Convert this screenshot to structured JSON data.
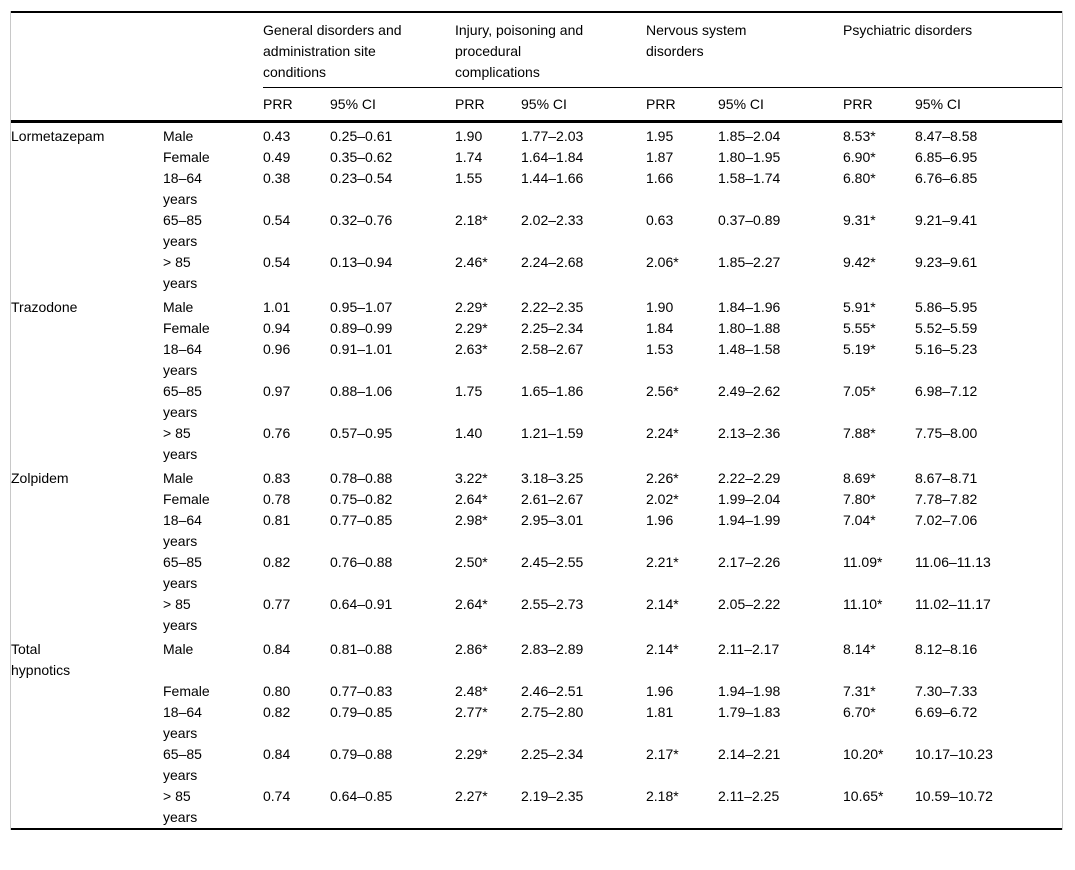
{
  "table": {
    "group_headers": [
      "General disorders and administration site conditions",
      "Injury, poisoning and procedural complications",
      "Nervous system disorders",
      "Psychiatric disorders"
    ],
    "sub_headers": {
      "prr": "PRR",
      "ci": "95% CI"
    },
    "sections": [
      {
        "drug": "Lormetazepam",
        "rows": [
          {
            "label": "Male",
            "v": [
              "0.43",
              "0.25–0.61",
              "1.90",
              "1.77–2.03",
              "1.95",
              "1.85–2.04",
              "8.53*",
              "8.47–8.58"
            ]
          },
          {
            "label": "Female",
            "v": [
              "0.49",
              "0.35–0.62",
              "1.74",
              "1.64–1.84",
              "1.87",
              "1.80–1.95",
              "6.90*",
              "6.85–6.95"
            ]
          },
          {
            "label": "18–64 years",
            "v": [
              "0.38",
              "0.23–0.54",
              "1.55",
              "1.44–1.66",
              "1.66",
              "1.58–1.74",
              "6.80*",
              "6.76–6.85"
            ]
          },
          {
            "label": "65–85 years",
            "v": [
              "0.54",
              "0.32–0.76",
              "2.18*",
              "2.02–2.33",
              "0.63",
              "0.37–0.89",
              "9.31*",
              "9.21–9.41"
            ]
          },
          {
            "label": "> 85 years",
            "v": [
              "0.54",
              "0.13–0.94",
              "2.46*",
              "2.24–2.68",
              "2.06*",
              "1.85–2.27",
              "9.42*",
              "9.23–9.61"
            ]
          }
        ]
      },
      {
        "drug": "Trazodone",
        "rows": [
          {
            "label": "Male",
            "v": [
              "1.01",
              "0.95–1.07",
              "2.29*",
              "2.22–2.35",
              "1.90",
              "1.84–1.96",
              "5.91*",
              "5.86–5.95"
            ]
          },
          {
            "label": "Female",
            "v": [
              "0.94",
              "0.89–0.99",
              "2.29*",
              "2.25–2.34",
              "1.84",
              "1.80–1.88",
              "5.55*",
              "5.52–5.59"
            ]
          },
          {
            "label": "18–64 years",
            "v": [
              "0.96",
              "0.91–1.01",
              "2.63*",
              "2.58–2.67",
              "1.53",
              "1.48–1.58",
              "5.19*",
              "5.16–5.23"
            ]
          },
          {
            "label": "65–85 years",
            "v": [
              "0.97",
              "0.88–1.06",
              "1.75",
              "1.65–1.86",
              "2.56*",
              "2.49–2.62",
              "7.05*",
              "6.98–7.12"
            ]
          },
          {
            "label": "> 85 years",
            "v": [
              "0.76",
              "0.57–0.95",
              "1.40",
              "1.21–1.59",
              "2.24*",
              "2.13–2.36",
              "7.88*",
              "7.75–8.00"
            ]
          }
        ]
      },
      {
        "drug": "Zolpidem",
        "rows": [
          {
            "label": "Male",
            "v": [
              "0.83",
              "0.78–0.88",
              "3.22*",
              "3.18–3.25",
              "2.26*",
              "2.22–2.29",
              "8.69*",
              "8.67–8.71"
            ]
          },
          {
            "label": "Female",
            "v": [
              "0.78",
              "0.75–0.82",
              "2.64*",
              "2.61–2.67",
              "2.02*",
              "1.99–2.04",
              "7.80*",
              "7.78–7.82"
            ]
          },
          {
            "label": "18–64 years",
            "v": [
              "0.81",
              "0.77–0.85",
              "2.98*",
              "2.95–3.01",
              "1.96",
              "1.94–1.99",
              "7.04*",
              "7.02–7.06"
            ]
          },
          {
            "label": "65–85 years",
            "v": [
              "0.82",
              "0.76–0.88",
              "2.50*",
              "2.45–2.55",
              "2.21*",
              "2.17–2.26",
              "11.09*",
              "11.06–11.13"
            ]
          },
          {
            "label": "> 85 years",
            "v": [
              "0.77",
              "0.64–0.91",
              "2.64*",
              "2.55–2.73",
              "2.14*",
              "2.05–2.22",
              "11.10*",
              "11.02–11.17"
            ]
          }
        ]
      },
      {
        "drug": "Total hypnotics",
        "rows": [
          {
            "label": "Male",
            "v": [
              "0.84",
              "0.81–0.88",
              "2.86*",
              "2.83–2.89",
              "2.14*",
              "2.11–2.17",
              "8.14*",
              "8.12–8.16"
            ]
          },
          {
            "label": "Female",
            "v": [
              "0.80",
              "0.77–0.83",
              "2.48*",
              "2.46–2.51",
              "1.96",
              "1.94–1.98",
              "7.31*",
              "7.30–7.33"
            ]
          },
          {
            "label": "18–64 years",
            "v": [
              "0.82",
              "0.79–0.85",
              "2.77*",
              "2.75–2.80",
              "1.81",
              "1.79–1.83",
              "6.70*",
              "6.69–6.72"
            ]
          },
          {
            "label": "65–85 years",
            "v": [
              "0.84",
              "0.79–0.88",
              "2.29*",
              "2.25–2.34",
              "2.17*",
              "2.14–2.21",
              "10.20*",
              "10.17–10.23"
            ]
          },
          {
            "label": "> 85 years",
            "v": [
              "0.74",
              "0.64–0.85",
              "2.27*",
              "2.19–2.35",
              "2.18*",
              "2.11–2.25",
              "10.65*",
              "10.59–10.72"
            ]
          }
        ]
      }
    ]
  }
}
